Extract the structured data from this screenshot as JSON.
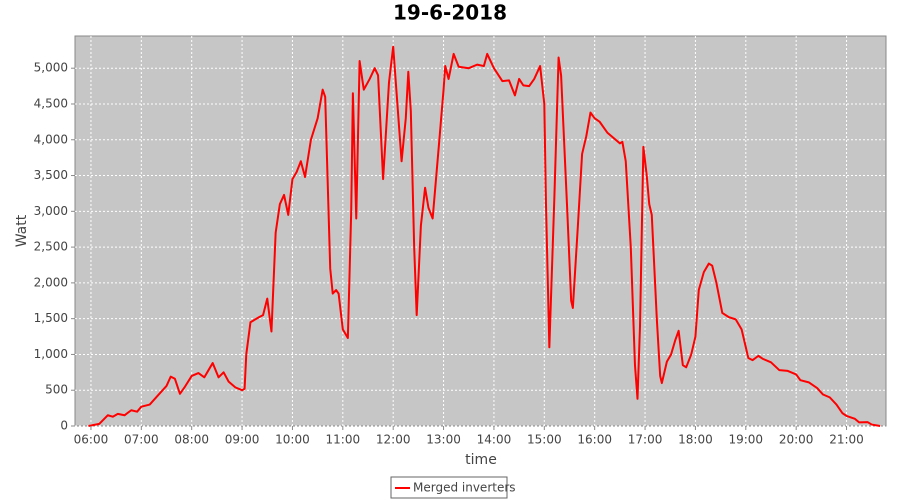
{
  "chart_data": {
    "type": "line",
    "title": "19-6-2018",
    "x_label": "time",
    "y_label": "Watt",
    "xlim": [
      "05:41",
      "21:47"
    ],
    "xticks": [
      "06:00",
      "07:00",
      "08:00",
      "09:00",
      "10:00",
      "11:00",
      "12:00",
      "13:00",
      "14:00",
      "15:00",
      "16:00",
      "17:00",
      "18:00",
      "19:00",
      "20:00",
      "21:00"
    ],
    "ylim": [
      0,
      5450
    ],
    "yticks": [
      0,
      500,
      {
        "value": 1000,
        "label": "1,000"
      },
      {
        "value": 1500,
        "label": "1,500"
      },
      {
        "value": 2000,
        "label": "2,000"
      },
      {
        "value": 2500,
        "label": "2,500"
      },
      {
        "value": 3000,
        "label": "3,000"
      },
      {
        "value": 3500,
        "label": "3,500"
      },
      {
        "value": 4000,
        "label": "4,000"
      },
      {
        "value": 4500,
        "label": "4,500"
      },
      {
        "value": 5000,
        "label": "5,000"
      }
    ],
    "grid": true,
    "legend": "bottom",
    "x": [
      "05:57",
      "06:10",
      "06:20",
      "06:26",
      "06:32",
      "06:40",
      "06:48",
      "06:55",
      "07:00",
      "07:10",
      "07:20",
      "07:30",
      "07:35",
      "07:40",
      "07:46",
      "07:52",
      "08:00",
      "08:08",
      "08:15",
      "08:20",
      "08:25",
      "08:32",
      "08:38",
      "08:44",
      "08:52",
      "09:00",
      "09:03",
      "09:05",
      "09:10",
      "09:20",
      "09:25",
      "09:30",
      "09:35",
      "09:40",
      "09:45",
      "09:50",
      "09:55",
      "10:00",
      "10:05",
      "10:10",
      "10:15",
      "10:22",
      "10:30",
      "10:36",
      "10:39",
      "10:45",
      "10:48",
      "10:52",
      "10:55",
      "11:00",
      "11:06",
      "11:10",
      "11:12",
      "11:16",
      "11:20",
      "11:25",
      "11:32",
      "11:38",
      "11:42",
      "11:48",
      "11:55",
      "12:00",
      "12:05",
      "12:10",
      "12:15",
      "12:18",
      "12:21",
      "12:25",
      "12:28",
      "12:33",
      "12:38",
      "12:42",
      "12:47",
      "12:55",
      "13:00",
      "13:02",
      "13:06",
      "13:12",
      "13:18",
      "13:30",
      "13:40",
      "13:48",
      "13:52",
      "14:00",
      "14:10",
      "14:18",
      "14:25",
      "14:30",
      "14:35",
      "14:42",
      "14:48",
      "14:55",
      "15:00",
      "15:02",
      "15:06",
      "15:12",
      "15:17",
      "15:20",
      "15:27",
      "15:32",
      "15:34",
      "15:40",
      "15:45",
      "15:50",
      "15:55",
      "16:00",
      "16:06",
      "16:15",
      "16:25",
      "16:30",
      "16:33",
      "16:37",
      "16:43",
      "16:48",
      "16:51",
      "16:54",
      "16:58",
      "17:02",
      "17:05",
      "17:08",
      "17:14",
      "17:18",
      "17:20",
      "17:26",
      "17:31",
      "17:36",
      "17:40",
      "17:45",
      "17:49",
      "17:55",
      "18:00",
      "18:04",
      "18:10",
      "18:16",
      "18:20",
      "18:25",
      "18:32",
      "18:40",
      "18:48",
      "18:55",
      "19:00",
      "19:03",
      "19:08",
      "19:15",
      "19:20",
      "19:30",
      "19:40",
      "19:50",
      "20:00",
      "20:05",
      "20:15",
      "20:25",
      "20:32",
      "20:40",
      "20:48",
      "20:55",
      "21:00",
      "21:10",
      "21:15",
      "21:25",
      "21:30",
      "21:40"
    ],
    "series": [
      {
        "name": "Merged inverters",
        "color": "#ff0000",
        "values": [
          0,
          30,
          150,
          130,
          170,
          150,
          220,
          200,
          270,
          300,
          430,
          560,
          690,
          660,
          450,
          550,
          700,
          740,
          680,
          780,
          880,
          680,
          750,
          620,
          540,
          500,
          520,
          1000,
          1450,
          1520,
          1550,
          1780,
          1320,
          2700,
          3100,
          3230,
          2950,
          3450,
          3550,
          3700,
          3480,
          4000,
          4300,
          4700,
          4600,
          2200,
          1850,
          1900,
          1850,
          1350,
          1230,
          3000,
          4650,
          2900,
          5100,
          4700,
          4850,
          5000,
          4900,
          3450,
          4800,
          5300,
          4500,
          3700,
          4300,
          4950,
          4400,
          2500,
          1550,
          2800,
          3330,
          3050,
          2900,
          4000,
          4700,
          5030,
          4850,
          5200,
          5020,
          5000,
          5050,
          5030,
          5200,
          5000,
          4820,
          4830,
          4620,
          4850,
          4760,
          4750,
          4850,
          5030,
          4500,
          3100,
          1100,
          3200,
          5150,
          4900,
          3100,
          1750,
          1650,
          2800,
          3800,
          4050,
          4380,
          4300,
          4250,
          4100,
          4000,
          3950,
          3970,
          3700,
          2500,
          850,
          380,
          1400,
          3900,
          3500,
          3100,
          2950,
          1500,
          700,
          600,
          900,
          1000,
          1200,
          1330,
          850,
          820,
          1000,
          1250,
          1900,
          2150,
          2270,
          2240,
          2000,
          1580,
          1520,
          1490,
          1350,
          1100,
          950,
          920,
          980,
          940,
          890,
          780,
          770,
          720,
          640,
          610,
          530,
          440,
          400,
          300,
          180,
          140,
          100,
          50,
          55,
          20,
          0
        ]
      }
    ]
  }
}
